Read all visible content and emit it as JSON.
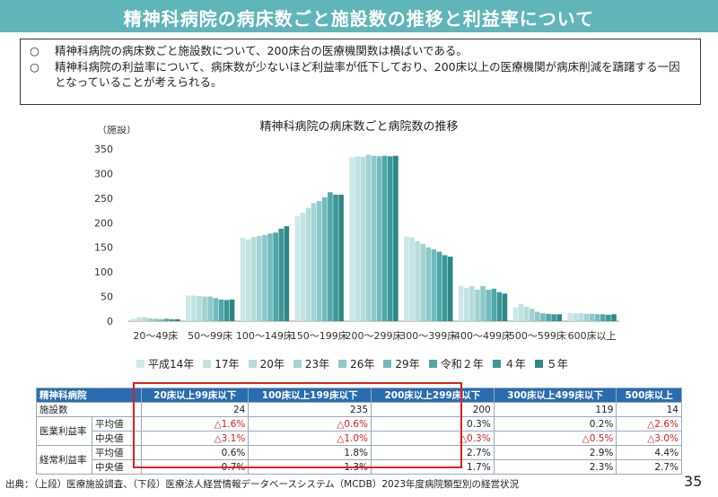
{
  "header": {
    "title": "精神科病院の病床数ごと施設数の推移と利益率について"
  },
  "summary": [
    {
      "mark": "○",
      "text": "精神科病院の病床数ごと施設数について、200床台の医療機関数は横ばいである。"
    },
    {
      "mark": "○",
      "text": "精神科病院の利益率について、病床数が少ないほど利益率が低下しており、200床以上の医療機関が病床削減を躊躇する一因となっていることが考えられる。"
    }
  ],
  "chart_data": {
    "type": "bar",
    "title": "精神科病院の病床数ごと病院数の推移",
    "ylabel": "（施設）",
    "ylim": [
      0,
      350
    ],
    "yticks": [
      0,
      50,
      100,
      150,
      200,
      250,
      300,
      350
    ],
    "categories": [
      "20～49床",
      "50～99床",
      "100～149床",
      "150～199床",
      "200～299床",
      "300～399床",
      "400～499床",
      "500～599床",
      "600床以上"
    ],
    "series": [
      {
        "name": "平成14年",
        "color": "#cce8e8",
        "values": [
          5,
          52,
          170,
          213,
          333,
          172,
          72,
          28,
          17
        ]
      },
      {
        "name": "17年",
        "color": "#c2e2e3",
        "values": [
          8,
          52,
          166,
          220,
          335,
          170,
          68,
          35,
          16
        ]
      },
      {
        "name": "20年",
        "color": "#b6dcdc",
        "values": [
          8,
          51,
          171,
          230,
          334,
          162,
          71,
          29,
          16
        ]
      },
      {
        "name": "23年",
        "color": "#a2d2d3",
        "values": [
          6,
          50,
          173,
          240,
          338,
          157,
          64,
          25,
          15
        ]
      },
      {
        "name": "26年",
        "color": "#8cc8c9",
        "values": [
          5,
          50,
          175,
          244,
          336,
          150,
          71,
          19,
          15
        ]
      },
      {
        "name": "29年",
        "color": "#72bbbd",
        "values": [
          4,
          47,
          178,
          252,
          335,
          146,
          64,
          16,
          14
        ]
      },
      {
        "name": "令和２年",
        "color": "#4fa7a8",
        "values": [
          5,
          44,
          180,
          262,
          336,
          141,
          66,
          15,
          14
        ]
      },
      {
        "name": "４年",
        "color": "#3a9797",
        "values": [
          4,
          43,
          188,
          257,
          335,
          134,
          59,
          14,
          13
        ]
      },
      {
        "name": "５年",
        "color": "#2e8787",
        "values": [
          4,
          44,
          193,
          257,
          336,
          131,
          56,
          14,
          14
        ]
      }
    ]
  },
  "table": {
    "headers": [
      "精神科病院",
      "",
      "20床以上99床以下",
      "100床以上199床以下",
      "200床以上299床以下",
      "300床以上499床以下",
      "500床以上"
    ],
    "rows": [
      {
        "group": "施設数",
        "sub": "",
        "values": [
          "24",
          "235",
          "200",
          "119",
          "14"
        ],
        "neg": [
          false,
          false,
          false,
          false,
          false
        ]
      },
      {
        "group": "医業利益率",
        "sub": "平均値",
        "values": [
          "△1.6%",
          "△0.6%",
          "0.3%",
          "0.2%",
          "△2.6%"
        ],
        "neg": [
          true,
          true,
          false,
          false,
          true
        ]
      },
      {
        "group": "",
        "sub": "中央値",
        "values": [
          "△3.1%",
          "△1.0%",
          "△0.3%",
          "△0.5%",
          "△3.0%"
        ],
        "neg": [
          true,
          true,
          true,
          true,
          true
        ]
      },
      {
        "group": "経常利益率",
        "sub": "平均値",
        "values": [
          "0.6%",
          "1.8%",
          "2.7%",
          "2.9%",
          "4.4%"
        ],
        "neg": [
          false,
          false,
          false,
          false,
          false
        ]
      },
      {
        "group": "",
        "sub": "中央値",
        "values": [
          "0.7%",
          "1.3%",
          "1.7%",
          "2.3%",
          "2.7%"
        ],
        "neg": [
          false,
          false,
          false,
          false,
          false
        ]
      }
    ]
  },
  "source": "出典：（上段）医療施設調査、（下段）医療法人経営情報データベースシステム（MCDB）2023年度病院類型別の経営状況",
  "page_number": "35"
}
